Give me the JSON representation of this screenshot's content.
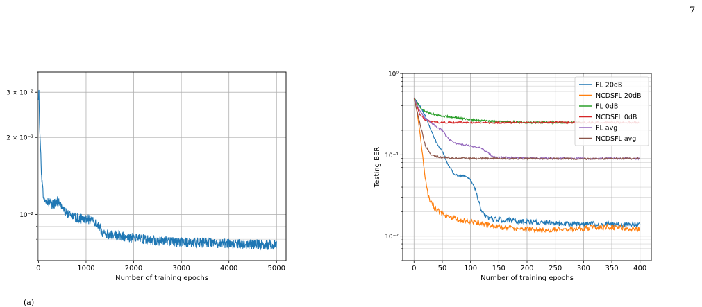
{
  "page": {
    "number": "7",
    "footer": "(a)"
  },
  "chart_data": [
    {
      "type": "line",
      "title": "",
      "xlabel": "Number of training epochs",
      "ylabel": "",
      "xlim": [
        -20,
        5200
      ],
      "ylim": [
        0.0066,
        0.036
      ],
      "yscale": "log",
      "grid": true,
      "xticks": [
        0,
        1000,
        2000,
        3000,
        4000,
        5000
      ],
      "xtick_labels": [
        "0",
        "1000",
        "2000",
        "3000",
        "4000",
        "5000"
      ],
      "yticks": [
        0.01,
        0.02,
        0.03
      ],
      "ytick_labels": [
        "10⁻²",
        "2 × 10⁻²",
        "3 × 10⁻²"
      ],
      "series": [
        {
          "color": "#1f77b4",
          "x": [
            0,
            10,
            20,
            40,
            60,
            80,
            100,
            150,
            200,
            300,
            400,
            500,
            600,
            700,
            800,
            900,
            1000,
            1100,
            1200,
            1300,
            1350,
            1400,
            1600,
            1800,
            2000,
            2200,
            2500,
            3000,
            3500,
            4000,
            4500,
            5000
          ],
          "y": [
            0.028,
            0.032,
            0.023,
            0.019,
            0.015,
            0.013,
            0.0118,
            0.0113,
            0.0112,
            0.0109,
            0.0113,
            0.0106,
            0.0101,
            0.0099,
            0.0097,
            0.0096,
            0.0096,
            0.0095,
            0.0093,
            0.0089,
            0.0085,
            0.0084,
            0.0083,
            0.0082,
            0.0081,
            0.008,
            0.0079,
            0.0078,
            0.00775,
            0.0077,
            0.00765,
            0.0076
          ]
        }
      ]
    },
    {
      "type": "line",
      "title": "",
      "xlabel": "Number of training epochs",
      "ylabel": "Testing BER",
      "xlim": [
        -20,
        420
      ],
      "ylim": [
        0.005,
        1.0
      ],
      "yscale": "log",
      "grid": true,
      "xticks": [
        0,
        50,
        100,
        150,
        200,
        250,
        300,
        350,
        400
      ],
      "xtick_labels": [
        "0",
        "50",
        "100",
        "150",
        "200",
        "250",
        "300",
        "350",
        "400"
      ],
      "yticks": [
        0.01,
        0.1,
        1.0
      ],
      "ytick_labels": [
        "10⁻²",
        "10⁻¹",
        "10⁰"
      ],
      "legend": "top-right",
      "series": [
        {
          "name": "FL 20dB",
          "color": "#1f77b4",
          "x": [
            0,
            10,
            20,
            30,
            40,
            50,
            60,
            70,
            80,
            90,
            100,
            110,
            120,
            130,
            140,
            150,
            200,
            250,
            300,
            350,
            400
          ],
          "y": [
            0.5,
            0.4,
            0.3,
            0.2,
            0.14,
            0.11,
            0.077,
            0.058,
            0.055,
            0.055,
            0.05,
            0.035,
            0.02,
            0.017,
            0.016,
            0.016,
            0.015,
            0.0145,
            0.014,
            0.014,
            0.014
          ]
        },
        {
          "name": "NCDSFL 20dB",
          "color": "#ff7f0e",
          "x": [
            0,
            5,
            10,
            15,
            20,
            25,
            30,
            40,
            50,
            60,
            80,
            100,
            150,
            200,
            250,
            300,
            350,
            400
          ],
          "y": [
            0.5,
            0.35,
            0.2,
            0.1,
            0.05,
            0.032,
            0.026,
            0.021,
            0.019,
            0.017,
            0.016,
            0.015,
            0.013,
            0.012,
            0.012,
            0.0125,
            0.013,
            0.012
          ]
        },
        {
          "name": "FL 0dB",
          "color": "#2ca02c",
          "x": [
            0,
            10,
            20,
            30,
            50,
            70,
            100,
            130,
            160,
            200,
            250,
            300
          ],
          "y": [
            0.5,
            0.39,
            0.34,
            0.32,
            0.3,
            0.29,
            0.27,
            0.26,
            0.255,
            0.25,
            0.25,
            0.25
          ]
        },
        {
          "name": "NCDSFL 0dB",
          "color": "#d62728",
          "x": [
            0,
            10,
            20,
            30,
            50,
            100,
            150,
            200,
            250,
            300,
            350,
            400
          ],
          "y": [
            0.5,
            0.32,
            0.27,
            0.255,
            0.25,
            0.25,
            0.248,
            0.25,
            0.25,
            0.25,
            0.25,
            0.25
          ]
        },
        {
          "name": "FL avg",
          "color": "#9467bd",
          "x": [
            0,
            10,
            20,
            30,
            40,
            50,
            60,
            70,
            80,
            100,
            120,
            140,
            150,
            200,
            250,
            300,
            350,
            400
          ],
          "y": [
            0.5,
            0.35,
            0.28,
            0.25,
            0.22,
            0.2,
            0.16,
            0.14,
            0.135,
            0.13,
            0.12,
            0.095,
            0.093,
            0.091,
            0.09,
            0.09,
            0.09,
            0.09
          ]
        },
        {
          "name": "NCDSFL avg",
          "color": "#8c564b",
          "x": [
            0,
            10,
            20,
            30,
            40,
            60,
            100,
            150,
            200,
            250,
            300,
            350,
            400
          ],
          "y": [
            0.5,
            0.25,
            0.13,
            0.1,
            0.095,
            0.092,
            0.09,
            0.09,
            0.09,
            0.09,
            0.089,
            0.09,
            0.09
          ]
        }
      ]
    }
  ]
}
